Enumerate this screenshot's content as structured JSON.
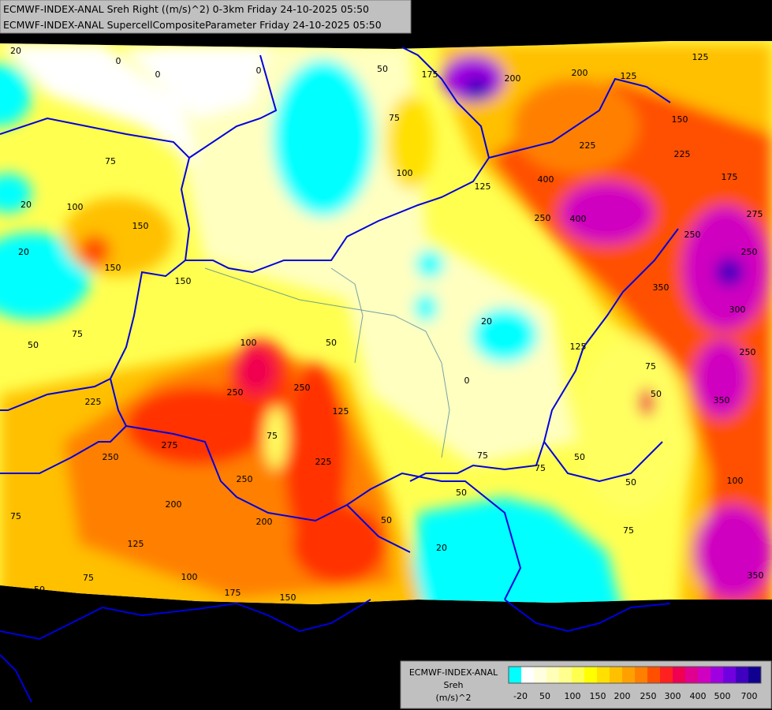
{
  "header": {
    "lines": [
      "ECMWF-INDEX-ANAL Sreh Right ((m/s)^2) 0-3km Friday 24-10-2025 05:50",
      "ECMWF-INDEX-ANAL SupercellCompositeParameter Friday 24-10-2025 05:50"
    ]
  },
  "legend": {
    "title_lines": [
      "ECMWF-INDEX-ANAL",
      "Sreh",
      "(m/s)^2"
    ],
    "ticks": [
      -20,
      50,
      100,
      150,
      200,
      250,
      300,
      400,
      500,
      700
    ],
    "colors": [
      "#00ffff",
      "#ffffff",
      "#ffffe0",
      "#ffffb8",
      "#ffff90",
      "#ffff50",
      "#ffff00",
      "#ffe000",
      "#ffc000",
      "#ffa000",
      "#ff8000",
      "#ff5000",
      "#ff2020",
      "#f00050",
      "#e00090",
      "#d000c0",
      "#a000e0",
      "#7000e0",
      "#4000c0",
      "#100090"
    ]
  },
  "contour_labels": [
    "20",
    "0",
    "0",
    "0",
    "50",
    "175",
    "200",
    "200",
    "125",
    "125",
    "150",
    "225",
    "175",
    "275",
    "250",
    "250",
    "350",
    "300",
    "250",
    "350",
    "75",
    "50",
    "100",
    "75",
    "50",
    "50",
    "75",
    "75",
    "50",
    "20",
    "50",
    "250",
    "200",
    "225",
    "125",
    "75",
    "250",
    "250",
    "100",
    "50",
    "20",
    "0",
    "125",
    "125",
    "250",
    "400",
    "400",
    "100",
    "75",
    "75",
    "100",
    "20",
    "20",
    "150",
    "150",
    "150",
    "75",
    "50",
    "225",
    "250",
    "275",
    "200",
    "125",
    "100",
    "75",
    "50",
    "75",
    "175",
    "150",
    "350",
    "225"
  ]
}
